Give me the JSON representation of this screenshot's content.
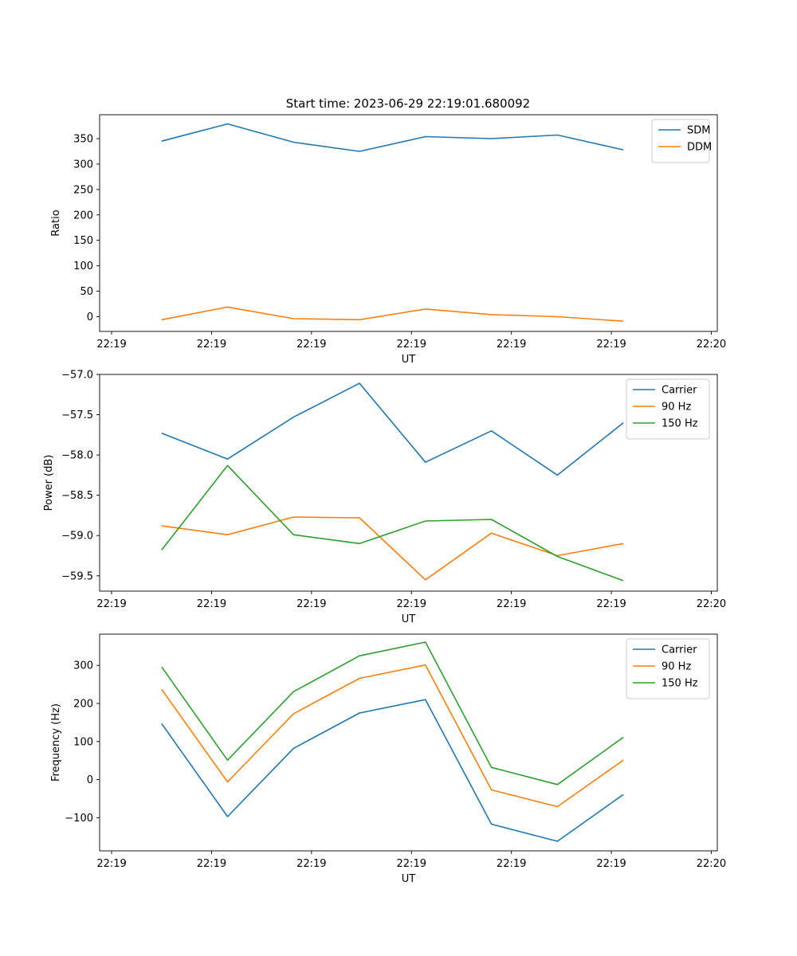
{
  "figure": {
    "title": "Start time: 2023-06-29 22:19:01.680092"
  },
  "colors": {
    "blue": "#1f77b4",
    "orange": "#ff7f0e",
    "green": "#2ca02c"
  },
  "chart_data": [
    {
      "type": "line",
      "title": "Start time: 2023-06-29 22:19:01.680092",
      "xlabel": "UT",
      "ylabel": "Ratio",
      "x_tick_labels": [
        "22:19",
        "22:19",
        "22:19",
        "22:19",
        "22:19",
        "22:19",
        "22:20"
      ],
      "xlim": [
        -0.12,
        6.06
      ],
      "x": [
        0.5,
        1.16,
        1.82,
        2.48,
        3.14,
        3.8,
        4.46,
        5.12
      ],
      "ylim": [
        -29,
        397
      ],
      "y_ticks": [
        0,
        50,
        100,
        150,
        200,
        250,
        300,
        350
      ],
      "legend": "top-right",
      "grid": false,
      "series": [
        {
          "name": "SDM",
          "color": "#1f77b4",
          "values": [
            345,
            379,
            343,
            325,
            354,
            350,
            357,
            328
          ]
        },
        {
          "name": "DDM",
          "color": "#ff7f0e",
          "values": [
            -6,
            19,
            -4,
            -6,
            15,
            4,
            0,
            -9
          ]
        }
      ]
    },
    {
      "type": "line",
      "xlabel": "UT",
      "ylabel": "Power (dB)",
      "x_tick_labels": [
        "22:19",
        "22:19",
        "22:19",
        "22:19",
        "22:19",
        "22:19",
        "22:20"
      ],
      "xlim": [
        -0.12,
        6.06
      ],
      "x": [
        0.5,
        1.16,
        1.82,
        2.48,
        3.14,
        3.8,
        4.46,
        5.12
      ],
      "ylim": [
        -59.69,
        -57.0
      ],
      "y_ticks": [
        -59.5,
        -59.0,
        -58.5,
        -58.0,
        -57.5,
        -57.0
      ],
      "legend": "top-right",
      "grid": false,
      "series": [
        {
          "name": "Carrier",
          "color": "#1f77b4",
          "values": [
            -57.73,
            -58.05,
            -57.53,
            -57.11,
            -58.09,
            -57.7,
            -58.25,
            -57.6
          ]
        },
        {
          "name": "90 Hz",
          "color": "#ff7f0e",
          "values": [
            -58.88,
            -58.99,
            -58.77,
            -58.78,
            -59.55,
            -58.97,
            -59.25,
            -59.1
          ]
        },
        {
          "name": "150 Hz",
          "color": "#2ca02c",
          "values": [
            -59.18,
            -58.13,
            -58.99,
            -59.1,
            -58.82,
            -58.8,
            -59.26,
            -59.56
          ]
        }
      ]
    },
    {
      "type": "line",
      "xlabel": "UT",
      "ylabel": "Frequency (Hz)",
      "x_tick_labels": [
        "22:19",
        "22:19",
        "22:19",
        "22:19",
        "22:19",
        "22:19",
        "22:20"
      ],
      "xlim": [
        -0.12,
        6.06
      ],
      "x": [
        0.5,
        1.16,
        1.82,
        2.48,
        3.14,
        3.8,
        4.46,
        5.12
      ],
      "ylim": [
        -187,
        382
      ],
      "y_ticks": [
        -100,
        0,
        100,
        200,
        300
      ],
      "legend": "top-right",
      "grid": false,
      "series": [
        {
          "name": "Carrier",
          "color": "#1f77b4",
          "values": [
            147,
            -97,
            82,
            175,
            210,
            -117,
            -162,
            -39
          ]
        },
        {
          "name": "90 Hz",
          "color": "#ff7f0e",
          "values": [
            237,
            -6,
            173,
            266,
            301,
            -27,
            -71,
            51
          ]
        },
        {
          "name": "150 Hz",
          "color": "#2ca02c",
          "values": [
            296,
            51,
            231,
            325,
            361,
            32,
            -13,
            111
          ]
        }
      ]
    }
  ]
}
